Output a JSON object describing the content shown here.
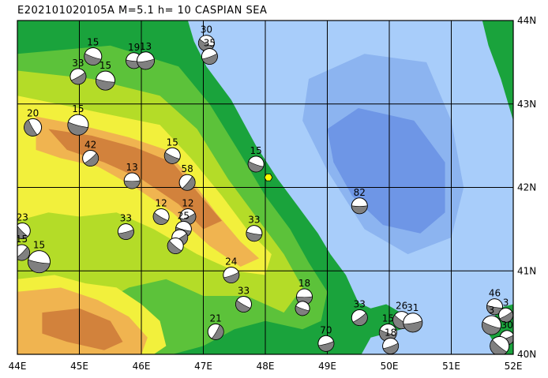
{
  "title": "E202101020105A  M=5.1  h= 10 CASPIAN SEA",
  "map": {
    "lon_range": [
      44,
      52
    ],
    "lat_range": [
      40,
      44
    ],
    "grid_lons": [
      45,
      46,
      47,
      48,
      49,
      50,
      51
    ],
    "grid_lats": [
      41,
      42,
      43
    ],
    "lon_labels": [
      "44E",
      "45E",
      "46E",
      "47E",
      "48E",
      "49E",
      "50E",
      "51E",
      "52E"
    ],
    "lat_labels": [
      "40N",
      "41N",
      "42N",
      "43N",
      "44N"
    ],
    "colors": {
      "deep_sea": "#6e96e6",
      "mid_sea": "#8cb4f0",
      "shallow_sea": "#a8cdfa",
      "lowland": "#1aa33c",
      "plain": "#5cc23a",
      "hill": "#b4dc28",
      "upland": "#f2f03c",
      "mountain": "#f0b450",
      "high_mountain": "#d2823c",
      "beachball_fill": "#808080",
      "epicenter": "#ffff00"
    }
  },
  "epicenter": {
    "lon": 48.05,
    "lat": 42.12,
    "name": "epicenter-marker"
  },
  "events": [
    {
      "lon": 45.22,
      "lat": 43.57,
      "depth": "15",
      "r": 11,
      "angle": 20
    },
    {
      "lon": 44.98,
      "lat": 43.33,
      "depth": "33",
      "r": 10,
      "angle": -30
    },
    {
      "lon": 45.42,
      "lat": 43.28,
      "depth": "15",
      "r": 12,
      "angle": 10
    },
    {
      "lon": 45.88,
      "lat": 43.52,
      "depth": "19",
      "r": 10,
      "angle": 5
    },
    {
      "lon": 46.07,
      "lat": 43.52,
      "depth": "13",
      "r": 11,
      "angle": -10
    },
    {
      "lon": 47.05,
      "lat": 43.73,
      "depth": "30",
      "r": 10,
      "angle": 30
    },
    {
      "lon": 47.1,
      "lat": 43.57,
      "depth": "35",
      "r": 10,
      "angle": -20
    },
    {
      "lon": 44.25,
      "lat": 42.72,
      "depth": "20",
      "r": 11,
      "angle": 60
    },
    {
      "lon": 44.98,
      "lat": 42.75,
      "depth": "15",
      "r": 13,
      "angle": 15
    },
    {
      "lon": 45.18,
      "lat": 42.35,
      "depth": "42",
      "r": 10,
      "angle": -40
    },
    {
      "lon": 45.85,
      "lat": 42.08,
      "depth": "13",
      "r": 10,
      "angle": 0
    },
    {
      "lon": 46.5,
      "lat": 42.38,
      "depth": "15",
      "r": 10,
      "angle": 25
    },
    {
      "lon": 46.74,
      "lat": 42.06,
      "depth": "58",
      "r": 10,
      "angle": -50
    },
    {
      "lon": 47.85,
      "lat": 42.28,
      "depth": "15",
      "r": 10,
      "angle": 20
    },
    {
      "lon": 44.08,
      "lat": 41.48,
      "depth": "23",
      "r": 10,
      "angle": 45
    },
    {
      "lon": 44.07,
      "lat": 41.22,
      "depth": "15",
      "r": 10,
      "angle": -45
    },
    {
      "lon": 44.35,
      "lat": 41.11,
      "depth": "15",
      "r": 14,
      "angle": 10
    },
    {
      "lon": 45.75,
      "lat": 41.47,
      "depth": "33",
      "r": 10,
      "angle": -15
    },
    {
      "lon": 46.32,
      "lat": 41.65,
      "depth": "12",
      "r": 10,
      "angle": 30
    },
    {
      "lon": 46.75,
      "lat": 41.65,
      "depth": "12",
      "r": 10,
      "angle": -25
    },
    {
      "lon": 46.68,
      "lat": 41.5,
      "depth": "25",
      "r": 10,
      "angle": 15
    },
    {
      "lon": 46.62,
      "lat": 41.4,
      "depth": "",
      "r": 10,
      "angle": -30
    },
    {
      "lon": 46.55,
      "lat": 41.3,
      "depth": "",
      "r": 10,
      "angle": 40
    },
    {
      "lon": 47.82,
      "lat": 41.45,
      "depth": "33",
      "r": 10,
      "angle": 10
    },
    {
      "lon": 47.45,
      "lat": 40.95,
      "depth": "24",
      "r": 10,
      "angle": -20
    },
    {
      "lon": 47.65,
      "lat": 40.6,
      "depth": "33",
      "r": 10,
      "angle": 30
    },
    {
      "lon": 47.2,
      "lat": 40.27,
      "depth": "21",
      "r": 10,
      "angle": -60
    },
    {
      "lon": 48.63,
      "lat": 40.69,
      "depth": "18",
      "r": 10,
      "angle": 0
    },
    {
      "lon": 48.6,
      "lat": 40.55,
      "depth": "",
      "r": 9,
      "angle": 20
    },
    {
      "lon": 48.98,
      "lat": 40.13,
      "depth": "70",
      "r": 10,
      "angle": -15
    },
    {
      "lon": 49.52,
      "lat": 41.78,
      "depth": "82",
      "r": 10,
      "angle": 0
    },
    {
      "lon": 49.52,
      "lat": 40.44,
      "depth": "33",
      "r": 10,
      "angle": -35
    },
    {
      "lon": 49.98,
      "lat": 40.26,
      "depth": "15",
      "r": 11,
      "angle": 20
    },
    {
      "lon": 50.02,
      "lat": 40.1,
      "depth": "18",
      "r": 10,
      "angle": -20
    },
    {
      "lon": 50.2,
      "lat": 40.41,
      "depth": "26",
      "r": 11,
      "angle": 35
    },
    {
      "lon": 50.38,
      "lat": 40.38,
      "depth": "31",
      "r": 12,
      "angle": -10
    },
    {
      "lon": 51.7,
      "lat": 40.57,
      "depth": "46",
      "r": 10,
      "angle": 10
    },
    {
      "lon": 51.88,
      "lat": 40.47,
      "depth": "3",
      "r": 9,
      "angle": -30
    },
    {
      "lon": 51.65,
      "lat": 40.35,
      "depth": "3",
      "r": 12,
      "angle": 20
    },
    {
      "lon": 51.9,
      "lat": 40.2,
      "depth": "30",
      "r": 9,
      "angle": -20
    },
    {
      "lon": 51.78,
      "lat": 40.1,
      "depth": "",
      "r": 12,
      "angle": 40
    }
  ]
}
